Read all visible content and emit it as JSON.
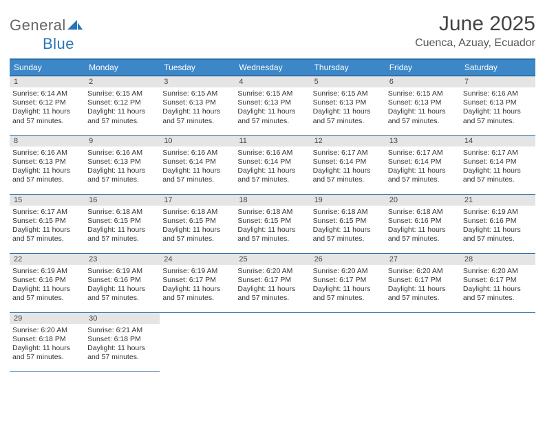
{
  "logo": {
    "text_gen": "General",
    "text_blue": "Blue"
  },
  "header": {
    "title": "June 2025",
    "subtitle": "Cuenca, Azuay, Ecuador"
  },
  "colors": {
    "header_bg": "#3b87c8",
    "header_border": "#2f6fa6",
    "daynum_bg": "#e5e5e5",
    "logo_blue": "#2a74b8"
  },
  "weekdays": [
    "Sunday",
    "Monday",
    "Tuesday",
    "Wednesday",
    "Thursday",
    "Friday",
    "Saturday"
  ],
  "labels": {
    "sunrise": "Sunrise:",
    "sunset": "Sunset:",
    "daylight": "Daylight:"
  },
  "days": [
    {
      "n": 1,
      "sr": "6:14 AM",
      "ss": "6:12 PM",
      "dl": "11 hours and 57 minutes."
    },
    {
      "n": 2,
      "sr": "6:15 AM",
      "ss": "6:12 PM",
      "dl": "11 hours and 57 minutes."
    },
    {
      "n": 3,
      "sr": "6:15 AM",
      "ss": "6:13 PM",
      "dl": "11 hours and 57 minutes."
    },
    {
      "n": 4,
      "sr": "6:15 AM",
      "ss": "6:13 PM",
      "dl": "11 hours and 57 minutes."
    },
    {
      "n": 5,
      "sr": "6:15 AM",
      "ss": "6:13 PM",
      "dl": "11 hours and 57 minutes."
    },
    {
      "n": 6,
      "sr": "6:15 AM",
      "ss": "6:13 PM",
      "dl": "11 hours and 57 minutes."
    },
    {
      "n": 7,
      "sr": "6:16 AM",
      "ss": "6:13 PM",
      "dl": "11 hours and 57 minutes."
    },
    {
      "n": 8,
      "sr": "6:16 AM",
      "ss": "6:13 PM",
      "dl": "11 hours and 57 minutes."
    },
    {
      "n": 9,
      "sr": "6:16 AM",
      "ss": "6:13 PM",
      "dl": "11 hours and 57 minutes."
    },
    {
      "n": 10,
      "sr": "6:16 AM",
      "ss": "6:14 PM",
      "dl": "11 hours and 57 minutes."
    },
    {
      "n": 11,
      "sr": "6:16 AM",
      "ss": "6:14 PM",
      "dl": "11 hours and 57 minutes."
    },
    {
      "n": 12,
      "sr": "6:17 AM",
      "ss": "6:14 PM",
      "dl": "11 hours and 57 minutes."
    },
    {
      "n": 13,
      "sr": "6:17 AM",
      "ss": "6:14 PM",
      "dl": "11 hours and 57 minutes."
    },
    {
      "n": 14,
      "sr": "6:17 AM",
      "ss": "6:14 PM",
      "dl": "11 hours and 57 minutes."
    },
    {
      "n": 15,
      "sr": "6:17 AM",
      "ss": "6:15 PM",
      "dl": "11 hours and 57 minutes."
    },
    {
      "n": 16,
      "sr": "6:18 AM",
      "ss": "6:15 PM",
      "dl": "11 hours and 57 minutes."
    },
    {
      "n": 17,
      "sr": "6:18 AM",
      "ss": "6:15 PM",
      "dl": "11 hours and 57 minutes."
    },
    {
      "n": 18,
      "sr": "6:18 AM",
      "ss": "6:15 PM",
      "dl": "11 hours and 57 minutes."
    },
    {
      "n": 19,
      "sr": "6:18 AM",
      "ss": "6:15 PM",
      "dl": "11 hours and 57 minutes."
    },
    {
      "n": 20,
      "sr": "6:18 AM",
      "ss": "6:16 PM",
      "dl": "11 hours and 57 minutes."
    },
    {
      "n": 21,
      "sr": "6:19 AM",
      "ss": "6:16 PM",
      "dl": "11 hours and 57 minutes."
    },
    {
      "n": 22,
      "sr": "6:19 AM",
      "ss": "6:16 PM",
      "dl": "11 hours and 57 minutes."
    },
    {
      "n": 23,
      "sr": "6:19 AM",
      "ss": "6:16 PM",
      "dl": "11 hours and 57 minutes."
    },
    {
      "n": 24,
      "sr": "6:19 AM",
      "ss": "6:17 PM",
      "dl": "11 hours and 57 minutes."
    },
    {
      "n": 25,
      "sr": "6:20 AM",
      "ss": "6:17 PM",
      "dl": "11 hours and 57 minutes."
    },
    {
      "n": 26,
      "sr": "6:20 AM",
      "ss": "6:17 PM",
      "dl": "11 hours and 57 minutes."
    },
    {
      "n": 27,
      "sr": "6:20 AM",
      "ss": "6:17 PM",
      "dl": "11 hours and 57 minutes."
    },
    {
      "n": 28,
      "sr": "6:20 AM",
      "ss": "6:17 PM",
      "dl": "11 hours and 57 minutes."
    },
    {
      "n": 29,
      "sr": "6:20 AM",
      "ss": "6:18 PM",
      "dl": "11 hours and 57 minutes."
    },
    {
      "n": 30,
      "sr": "6:21 AM",
      "ss": "6:18 PM",
      "dl": "11 hours and 57 minutes."
    }
  ],
  "start_weekday": 0
}
